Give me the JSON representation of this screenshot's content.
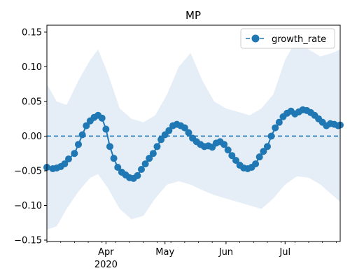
{
  "chart_data": {
    "type": "line",
    "title": "MP",
    "xlabel": "",
    "ylabel": "",
    "x_range": [
      "2020-03-02",
      "2020-07-29"
    ],
    "ylim": [
      -0.152,
      0.16
    ],
    "yticks": [
      -0.15,
      -0.1,
      -0.05,
      0.0,
      0.05,
      0.1,
      0.15
    ],
    "ytick_labels": [
      "−0.15",
      "−0.10",
      "−0.05",
      "0.00",
      "0.05",
      "0.10",
      "0.15"
    ],
    "xticks": [
      {
        "date": "2020-04-01",
        "label": "Apr"
      },
      {
        "date": "2020-05-01",
        "label": "May"
      },
      {
        "date": "2020-06-01",
        "label": "Jun"
      },
      {
        "date": "2020-07-01",
        "label": "Jul"
      }
    ],
    "x_year_label": {
      "date": "2020-04-01",
      "label": "2020"
    },
    "legend": {
      "position": "top-right",
      "entries": [
        "growth_rate"
      ]
    },
    "reference_line": {
      "y": 0.0,
      "style": "dashed"
    },
    "grid": false,
    "colors": {
      "line": "#1f77b4",
      "band": "#dce8f4"
    },
    "series": [
      {
        "name": "growth_rate",
        "x": [
          "2020-03-02",
          "2020-03-05",
          "2020-03-07",
          "2020-03-09",
          "2020-03-11",
          "2020-03-13",
          "2020-03-16",
          "2020-03-18",
          "2020-03-20",
          "2020-03-22",
          "2020-03-24",
          "2020-03-26",
          "2020-03-28",
          "2020-03-30",
          "2020-04-01",
          "2020-04-03",
          "2020-04-05",
          "2020-04-07",
          "2020-04-09",
          "2020-04-11",
          "2020-04-13",
          "2020-04-15",
          "2020-04-17",
          "2020-04-19",
          "2020-04-21",
          "2020-04-23",
          "2020-04-25",
          "2020-04-27",
          "2020-04-29",
          "2020-05-01",
          "2020-05-03",
          "2020-05-05",
          "2020-05-07",
          "2020-05-09",
          "2020-05-11",
          "2020-05-13",
          "2020-05-15",
          "2020-05-17",
          "2020-05-19",
          "2020-05-21",
          "2020-05-23",
          "2020-05-25",
          "2020-05-27",
          "2020-05-29",
          "2020-05-31",
          "2020-06-02",
          "2020-06-04",
          "2020-06-06",
          "2020-06-08",
          "2020-06-10",
          "2020-06-12",
          "2020-06-14",
          "2020-06-16",
          "2020-06-18",
          "2020-06-20",
          "2020-06-22",
          "2020-06-24",
          "2020-06-26",
          "2020-06-28",
          "2020-06-30",
          "2020-07-02",
          "2020-07-04",
          "2020-07-06",
          "2020-07-08",
          "2020-07-10",
          "2020-07-12",
          "2020-07-14",
          "2020-07-16",
          "2020-07-18",
          "2020-07-20",
          "2020-07-22",
          "2020-07-24",
          "2020-07-26",
          "2020-07-28",
          "2020-07-29"
        ],
        "y": [
          -0.045,
          -0.047,
          -0.046,
          -0.044,
          -0.04,
          -0.033,
          -0.025,
          -0.012,
          0.002,
          0.015,
          0.022,
          0.027,
          0.03,
          0.026,
          0.01,
          -0.015,
          -0.032,
          -0.045,
          -0.052,
          -0.056,
          -0.06,
          -0.061,
          -0.057,
          -0.048,
          -0.04,
          -0.032,
          -0.025,
          -0.015,
          -0.005,
          0.002,
          0.008,
          0.015,
          0.017,
          0.015,
          0.012,
          0.005,
          -0.003,
          -0.008,
          -0.012,
          -0.015,
          -0.014,
          -0.016,
          -0.01,
          -0.008,
          -0.012,
          -0.02,
          -0.028,
          -0.035,
          -0.042,
          -0.046,
          -0.047,
          -0.045,
          -0.04,
          -0.03,
          -0.022,
          -0.015,
          0.0,
          0.012,
          0.02,
          0.028,
          0.033,
          0.036,
          0.032,
          0.035,
          0.038,
          0.037,
          0.034,
          0.03,
          0.025,
          0.02,
          0.015,
          0.018,
          0.017,
          0.015,
          0.016
        ]
      }
    ],
    "band": {
      "x": [
        "2020-03-02",
        "2020-03-07",
        "2020-03-12",
        "2020-03-18",
        "2020-03-24",
        "2020-03-28",
        "2020-04-02",
        "2020-04-08",
        "2020-04-14",
        "2020-04-20",
        "2020-04-26",
        "2020-05-02",
        "2020-05-08",
        "2020-05-14",
        "2020-05-20",
        "2020-05-26",
        "2020-06-01",
        "2020-06-07",
        "2020-06-13",
        "2020-06-19",
        "2020-06-25",
        "2020-07-01",
        "2020-07-07",
        "2020-07-13",
        "2020-07-19",
        "2020-07-25",
        "2020-07-29"
      ],
      "upper": [
        0.075,
        0.05,
        0.045,
        0.08,
        0.11,
        0.125,
        0.09,
        0.04,
        0.025,
        0.02,
        0.03,
        0.06,
        0.1,
        0.12,
        0.08,
        0.05,
        0.04,
        0.035,
        0.03,
        0.04,
        0.06,
        0.11,
        0.14,
        0.125,
        0.115,
        0.12,
        0.125
      ],
      "lower": [
        -0.135,
        -0.13,
        -0.105,
        -0.08,
        -0.06,
        -0.055,
        -0.075,
        -0.105,
        -0.12,
        -0.115,
        -0.09,
        -0.07,
        -0.065,
        -0.07,
        -0.078,
        -0.085,
        -0.09,
        -0.095,
        -0.1,
        -0.105,
        -0.09,
        -0.07,
        -0.058,
        -0.06,
        -0.07,
        -0.085,
        -0.095
      ]
    }
  }
}
